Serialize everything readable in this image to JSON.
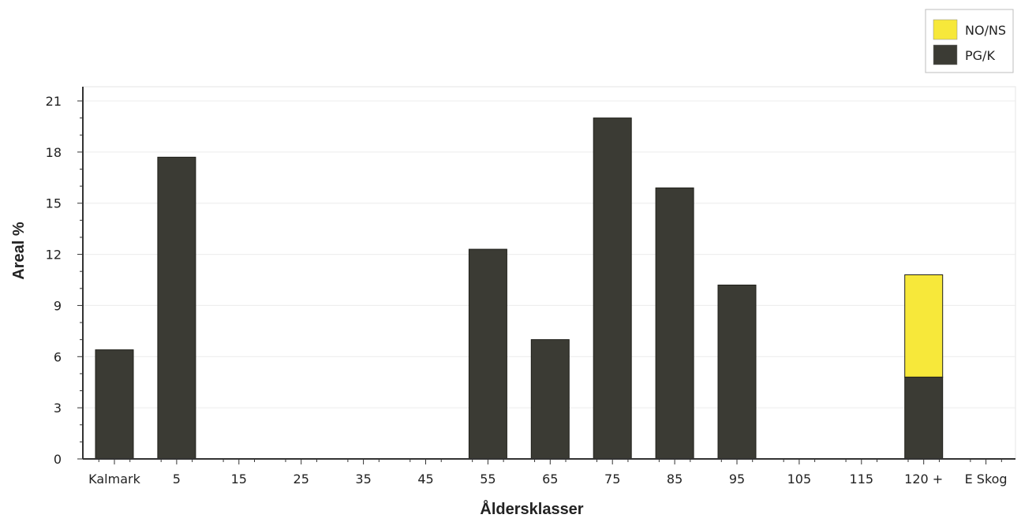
{
  "chart_data": {
    "type": "bar",
    "stacked": true,
    "categories": [
      "Kalmark",
      "5",
      "15",
      "25",
      "35",
      "45",
      "55",
      "65",
      "75",
      "85",
      "95",
      "105",
      "115",
      "120 +",
      "E Skog"
    ],
    "series": [
      {
        "name": "PG/K",
        "color": "#3b3b34",
        "values": [
          6.4,
          17.7,
          0,
          0,
          0,
          0,
          12.3,
          7.0,
          20.0,
          15.9,
          10.2,
          0,
          0,
          4.8,
          0
        ]
      },
      {
        "name": "NO/NS",
        "color": "#f7e83a",
        "values": [
          0,
          0,
          0,
          0,
          0,
          0,
          0,
          0,
          0,
          0,
          0,
          0,
          0,
          6.0,
          0
        ]
      }
    ],
    "title": "",
    "xlabel": "Åldersklasser",
    "ylabel": "Areal %",
    "ylim": [
      0,
      21
    ],
    "yticks": [
      0,
      3,
      6,
      9,
      12,
      15,
      18,
      21
    ],
    "grid": true,
    "legend_position": "top-right"
  }
}
